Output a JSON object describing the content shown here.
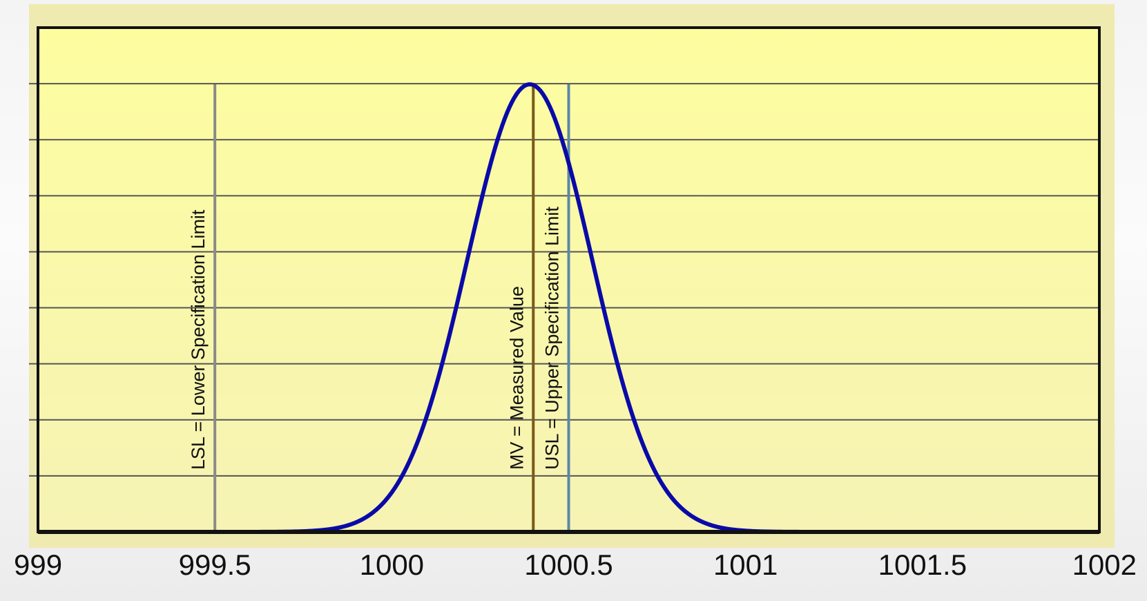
{
  "chart_data": {
    "type": "line",
    "title": "",
    "xlabel": "",
    "ylabel": "",
    "xlim": [
      999,
      1002
    ],
    "ylim": [
      0,
      1
    ],
    "x_ticks": [
      "999",
      "999.5",
      "1000",
      "1000.5",
      "1001",
      "1001.5",
      "1002"
    ],
    "grid": true,
    "y_gridlines": 9,
    "y_tick_labels_shown": false,
    "series": [
      {
        "distribution": "normal",
        "mean": 1000.39,
        "sd": 0.177,
        "x_range": [
          999.39,
          1001.41
        ],
        "color": "#0a0aa8"
      }
    ],
    "reference_lines": [
      {
        "label": "LSL = Lower Specification Limit",
        "x": 999.5,
        "color": "#8a8a8a"
      },
      {
        "label": "MV = Measured Value",
        "x": 1000.4,
        "color": "#7a5a1a"
      },
      {
        "label": "USL = Upper Specification Limit",
        "x": 1000.5,
        "color": "#5a87a8"
      }
    ],
    "colors": {
      "plot_background": "#fdfda8",
      "curve": "#0a0aa8",
      "frame": "#111111",
      "gridline": "#555555"
    }
  }
}
